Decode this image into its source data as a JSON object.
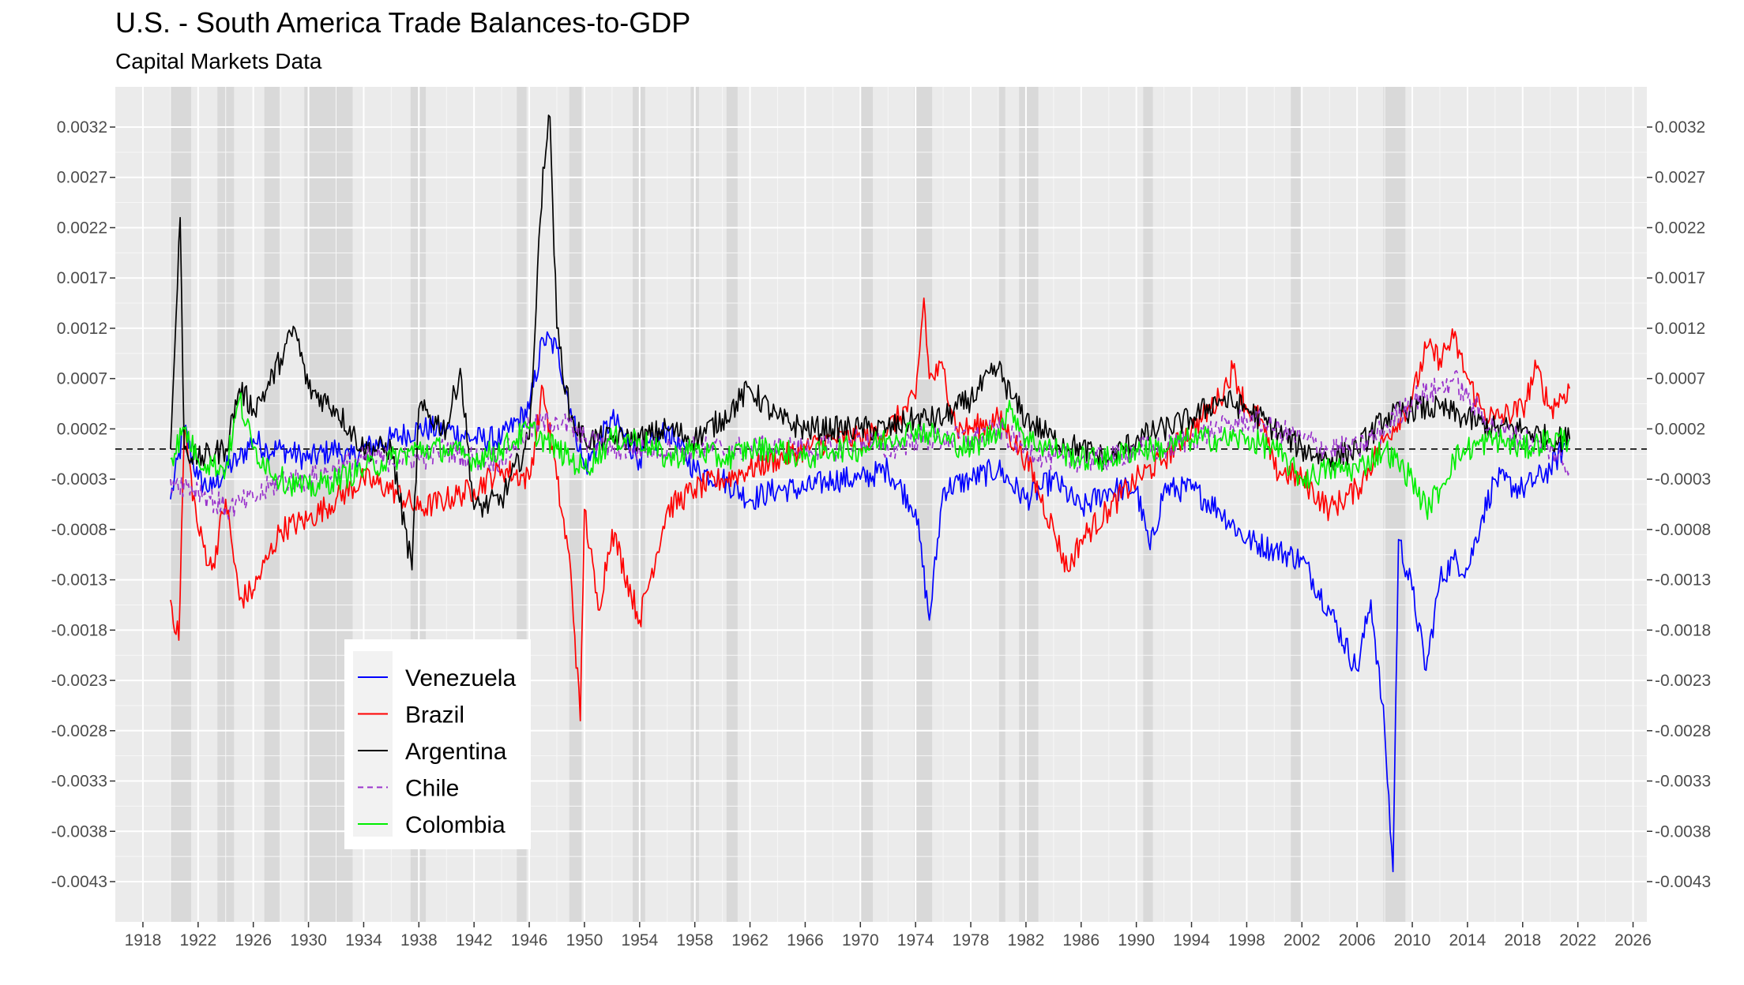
{
  "chart_data": {
    "type": "line",
    "title": "U.S. - South America Trade Balances-to-GDP",
    "subtitle": "Capital Markets Data",
    "xlabel": "",
    "ylabel": "",
    "xlim": [
      1916,
      2027
    ],
    "ylim": [
      -0.0047,
      0.0036
    ],
    "x_ticks": [
      "1918",
      "1922",
      "1926",
      "1930",
      "1934",
      "1938",
      "1942",
      "1946",
      "1950",
      "1954",
      "1958",
      "1962",
      "1966",
      "1970",
      "1974",
      "1978",
      "1982",
      "1986",
      "1990",
      "1994",
      "1998",
      "2002",
      "2006",
      "2010",
      "2014",
      "2018",
      "2022",
      "2026"
    ],
    "y_ticks": [
      "0.0032",
      "0.0027",
      "0.0022",
      "0.0017",
      "0.0012",
      "0.0007",
      "0.0002",
      "-0.0003",
      "-0.0008",
      "-0.0013",
      "-0.0018",
      "-0.0023",
      "-0.0028",
      "-0.0033",
      "-0.0038",
      "-0.0043"
    ],
    "reference_line_y": 0.0,
    "recession_bands": [
      [
        1920.0,
        1921.5
      ],
      [
        1923.4,
        1924.6
      ],
      [
        1926.8,
        1927.9
      ],
      [
        1929.7,
        1933.2
      ],
      [
        1937.4,
        1938.5
      ],
      [
        1945.1,
        1945.8
      ],
      [
        1948.9,
        1949.8
      ],
      [
        1953.5,
        1954.4
      ],
      [
        1957.7,
        1958.3
      ],
      [
        1960.3,
        1961.1
      ],
      [
        1970.0,
        1970.9
      ],
      [
        1973.9,
        1975.2
      ],
      [
        1980.0,
        1980.5
      ],
      [
        1981.5,
        1982.9
      ],
      [
        1990.5,
        1991.2
      ],
      [
        2001.2,
        2001.9
      ],
      [
        2007.9,
        2009.5
      ]
    ],
    "series": [
      {
        "name": "Venezuela",
        "color": "#0000ff",
        "dash": "solid",
        "x": [
          1920,
          1921,
          1922,
          1923,
          1924,
          1925,
          1926,
          1927,
          1928,
          1930,
          1932,
          1933,
          1934,
          1936,
          1938,
          1940,
          1942,
          1944,
          1946,
          1947,
          1948,
          1949,
          1950,
          1952,
          1954,
          1956,
          1958,
          1960,
          1962,
          1964,
          1966,
          1968,
          1970,
          1972,
          1974,
          1975,
          1976,
          1978,
          1980,
          1982,
          1983,
          1984,
          1986,
          1988,
          1990,
          1991,
          1992,
          1994,
          1996,
          1998,
          2000,
          2002,
          2004,
          2006,
          2007,
          2008,
          2008.6,
          2009,
          2010,
          2011,
          2012,
          2013,
          2014,
          2015,
          2016,
          2018,
          2020,
          2021.4
        ],
        "y": [
          -0.0005,
          0.0002,
          -0.0003,
          -0.0004,
          -0.0002,
          -0.0001,
          0.0001,
          0.0,
          0.0,
          -0.0001,
          0.0,
          -0.0001,
          0.0,
          0.0001,
          0.0002,
          0.0002,
          0.0001,
          0.0001,
          0.0004,
          0.0011,
          0.001,
          0.0004,
          -0.0002,
          0.0003,
          -0.0001,
          0.0002,
          -0.0002,
          -0.0003,
          -0.0005,
          -0.0004,
          -0.0004,
          -0.0003,
          -0.0003,
          -0.0002,
          -0.0006,
          -0.0017,
          -0.0004,
          -0.0003,
          -0.0002,
          -0.0005,
          -0.0004,
          -0.0003,
          -0.0006,
          -0.0004,
          -0.0004,
          -0.001,
          -0.0004,
          -0.0004,
          -0.0006,
          -0.0009,
          -0.001,
          -0.0011,
          -0.0016,
          -0.0022,
          -0.0015,
          -0.0028,
          -0.0042,
          -0.0009,
          -0.0014,
          -0.0022,
          -0.0013,
          -0.0011,
          -0.0012,
          -0.0007,
          -0.0003,
          -0.0004,
          -0.0002,
          0.0001
        ]
      },
      {
        "name": "Brazil",
        "color": "#ff0000",
        "dash": "solid",
        "x": [
          1920,
          1920.6,
          1921,
          1922,
          1923,
          1924,
          1925,
          1926,
          1927,
          1928,
          1930,
          1932,
          1934,
          1936,
          1938,
          1940,
          1942,
          1944,
          1946,
          1947,
          1948,
          1949,
          1949.7,
          1950,
          1951,
          1952,
          1954,
          1956,
          1958,
          1960,
          1962,
          1964,
          1966,
          1968,
          1970,
          1972,
          1974,
          1974.6,
          1975,
          1976,
          1977,
          1978,
          1980,
          1982,
          1984,
          1985,
          1986,
          1988,
          1990,
          1992,
          1994,
          1996,
          1997,
          1998,
          1999,
          2000,
          2002,
          2004,
          2006,
          2008,
          2010,
          2011,
          2012,
          2013,
          2014,
          2015,
          2016,
          2018,
          2019,
          2020,
          2021.4
        ],
        "y": [
          -0.0015,
          -0.0019,
          0.0002,
          -0.0008,
          -0.0012,
          -0.0005,
          -0.0015,
          -0.0014,
          -0.0011,
          -0.0008,
          -0.0007,
          -0.0005,
          -0.0003,
          -0.0004,
          -0.0006,
          -0.0005,
          -0.0004,
          -0.0002,
          -0.0003,
          0.0006,
          -0.0003,
          -0.0012,
          -0.0027,
          -0.0006,
          -0.0016,
          -0.0008,
          -0.0017,
          -0.0006,
          -0.0004,
          -0.0003,
          -0.0002,
          -0.0001,
          0.0,
          0.0001,
          0.0001,
          0.0002,
          0.0005,
          0.0015,
          0.0007,
          0.0008,
          0.0002,
          0.0002,
          0.0003,
          -0.0001,
          -0.0008,
          -0.0012,
          -0.0009,
          -0.0006,
          -0.0003,
          -0.0001,
          0.0002,
          0.0005,
          0.0008,
          0.0004,
          0.0003,
          -0.0002,
          -0.0003,
          -0.0006,
          -0.0004,
          0.0001,
          0.0005,
          0.001,
          0.0009,
          0.0011,
          0.0007,
          0.0004,
          0.0003,
          0.0004,
          0.0008,
          0.0004,
          0.0006
        ]
      },
      {
        "name": "Argentina",
        "color": "#000000",
        "dash": "solid",
        "x": [
          1920,
          1920.7,
          1921,
          1922,
          1924,
          1925,
          1926,
          1927,
          1928,
          1929,
          1930,
          1932,
          1934,
          1936,
          1937.5,
          1938,
          1940,
          1941,
          1942,
          1944,
          1946,
          1947,
          1947.5,
          1948,
          1949,
          1950,
          1952,
          1954,
          1956,
          1958,
          1960,
          1962,
          1964,
          1966,
          1968,
          1970,
          1972,
          1974,
          1976,
          1978,
          1980,
          1981,
          1982,
          1984,
          1986,
          1988,
          1990,
          1992,
          1994,
          1996,
          1998,
          2000,
          2002,
          2004,
          2006,
          2008,
          2010,
          2012,
          2014,
          2016,
          2018,
          2020,
          2021.4
        ],
        "y": [
          0.0,
          0.0023,
          0.0,
          -0.0001,
          0.0,
          0.0006,
          0.0004,
          0.0006,
          0.0009,
          0.0012,
          0.0006,
          0.0004,
          0.0,
          0.0,
          -0.0012,
          0.0004,
          0.0002,
          0.0008,
          -0.0006,
          -0.0005,
          0.0001,
          0.0028,
          0.0033,
          0.0012,
          0.0003,
          0.0001,
          0.0001,
          0.0001,
          0.0002,
          0.0001,
          0.0003,
          0.0006,
          0.0003,
          0.0002,
          0.0002,
          0.0002,
          0.0002,
          0.0003,
          0.0003,
          0.0005,
          0.0008,
          0.0005,
          0.0003,
          0.0001,
          0.0,
          -0.0001,
          0.0001,
          0.0002,
          0.0003,
          0.0005,
          0.0004,
          0.0002,
          0.0,
          -0.0001,
          0.0,
          0.0003,
          0.0004,
          0.0004,
          0.0003,
          0.0002,
          0.0002,
          0.0001,
          0.0001
        ]
      },
      {
        "name": "Chile",
        "color": "#9932cc",
        "dash": "dashed",
        "x": [
          1920,
          1922,
          1924,
          1926,
          1928,
          1930,
          1932,
          1934,
          1936,
          1938,
          1940,
          1942,
          1944,
          1946,
          1948,
          1950,
          1952,
          1954,
          1956,
          1958,
          1960,
          1962,
          1964,
          1966,
          1968,
          1970,
          1972,
          1974,
          1976,
          1978,
          1980,
          1982,
          1984,
          1986,
          1988,
          1990,
          1992,
          1994,
          1996,
          1998,
          2000,
          2002,
          2004,
          2006,
          2008,
          2010,
          2012,
          2013,
          2014,
          2016,
          2018,
          2020,
          2021.4
        ],
        "y": [
          -0.0003,
          -0.0004,
          -0.0006,
          -0.0005,
          -0.0003,
          -0.0003,
          -0.0002,
          -0.0001,
          -0.0001,
          -0.0001,
          0.0,
          -0.0001,
          -0.0001,
          0.0002,
          0.0003,
          0.0001,
          0.0,
          0.0,
          0.0,
          0.0,
          0.0,
          0.0,
          0.0,
          0.0,
          0.0,
          0.0001,
          0.0,
          0.0001,
          0.0001,
          0.0001,
          0.0002,
          0.0,
          -0.0001,
          -0.0001,
          -0.0001,
          0.0,
          0.0,
          0.0001,
          0.0002,
          0.0003,
          0.0002,
          0.0001,
          0.0,
          0.0,
          0.0002,
          0.0005,
          0.0006,
          0.0007,
          0.0005,
          0.0002,
          0.0001,
          0.0,
          -0.0002
        ]
      },
      {
        "name": "Colombia",
        "color": "#00ee00",
        "dash": "solid",
        "x": [
          1920,
          1921,
          1922,
          1924,
          1925,
          1926,
          1928,
          1930,
          1932,
          1934,
          1936,
          1938,
          1940,
          1942,
          1944,
          1946,
          1948,
          1950,
          1952,
          1954,
          1956,
          1958,
          1960,
          1962,
          1964,
          1966,
          1968,
          1970,
          1972,
          1974,
          1976,
          1978,
          1980,
          1981,
          1982,
          1984,
          1986,
          1988,
          1990,
          1992,
          1994,
          1996,
          1998,
          2000,
          2002,
          2004,
          2006,
          2008,
          2010,
          2011,
          2012,
          2013,
          2014,
          2016,
          2018,
          2020,
          2021.4
        ],
        "y": [
          -0.0001,
          0.0002,
          -0.0001,
          -0.0002,
          0.0005,
          0.0,
          -0.0003,
          -0.0004,
          -0.0003,
          -0.0002,
          -0.0001,
          0.0,
          0.0,
          -0.0001,
          0.0,
          0.0002,
          0.0,
          -0.0002,
          0.0001,
          0.0001,
          -0.0001,
          0.0,
          -0.0001,
          0.0,
          0.0,
          -0.0001,
          0.0,
          0.0,
          0.0001,
          0.0002,
          0.0001,
          0.0,
          0.0002,
          0.0004,
          0.0001,
          0.0,
          -0.0001,
          -0.0001,
          0.0,
          0.0,
          0.0001,
          0.0001,
          0.0001,
          0.0,
          -0.0003,
          -0.0002,
          -0.0002,
          0.0,
          -0.0003,
          -0.0006,
          -0.0004,
          -0.0001,
          0.0,
          0.0001,
          0.0,
          0.0001,
          0.0001
        ]
      }
    ],
    "legend": {
      "position": "inside-bottom-left",
      "entries": [
        "Venezuela",
        "Brazil",
        "Argentina",
        "Chile",
        "Colombia"
      ]
    }
  }
}
